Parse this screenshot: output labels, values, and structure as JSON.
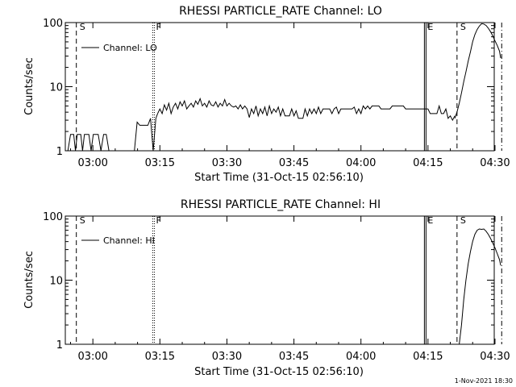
{
  "colors": {
    "background": "#ffffff",
    "ink": "#000000"
  },
  "footer": {
    "timestamp": "1-Nov-2021 18:30"
  },
  "chart_data": [
    {
      "type": "line",
      "title": "RHESSI PARTICLE_RATE Channel: LO",
      "xlabel": "Start Time (31-Oct-15 02:56:10)",
      "ylabel": "Counts/sec",
      "yscale": "log",
      "ylim": [
        1,
        100
      ],
      "xlim_minutes": [
        -6.17,
        89.83
      ],
      "xticks": [
        {
          "t": 0,
          "label": "03:00"
        },
        {
          "t": 15,
          "label": "03:15"
        },
        {
          "t": 30,
          "label": "03:30"
        },
        {
          "t": 45,
          "label": "03:45"
        },
        {
          "t": 60,
          "label": "04:00"
        },
        {
          "t": 75,
          "label": "04:15"
        },
        {
          "t": 90,
          "label": "04:30"
        }
      ],
      "yticks": [
        {
          "v": 1,
          "label": "1"
        },
        {
          "v": 10,
          "label": "10"
        },
        {
          "v": 100,
          "label": "100"
        }
      ],
      "legend": {
        "position": "top-left",
        "label": "Channel: LO"
      },
      "markers": [
        {
          "t": -3.7,
          "style": "dashed",
          "label": "S"
        },
        {
          "t": 13.4,
          "style": "dotted",
          "label": "F"
        },
        {
          "t": 74.2,
          "style": "solid",
          "label": "E"
        },
        {
          "t": 81.5,
          "style": "dashed",
          "label": "S"
        },
        {
          "t": 91.5,
          "style": "dashdot",
          "label": ""
        }
      ],
      "series": [
        {
          "name": "Channel: LO",
          "segments": [
            {
              "t": [
                -5.6,
                -5.0,
                -4.3,
                -3.9,
                -3.5,
                -3.1,
                -2.7,
                -2.3,
                -1.9,
                -1.4,
                -0.9,
                -0.4,
                0.1,
                0.6,
                1.2,
                1.8,
                2.4,
                3.0,
                3.6
              ],
              "v": [
                1,
                1.8,
                1.8,
                1,
                1.8,
                1.8,
                1.8,
                1,
                1.8,
                1.8,
                1.8,
                1,
                1.8,
                1.8,
                1.8,
                1,
                1.8,
                1.8,
                1
              ]
            },
            {
              "t": [
                9.3,
                9.9,
                10.5,
                11.1,
                11.7,
                12.3,
                12.9,
                13.5,
                14.1,
                14.5
              ],
              "v": [
                1,
                2.8,
                2.5,
                2.5,
                2.5,
                2.5,
                3.2,
                1,
                3.2,
                3.8
              ]
            },
            {
              "t": [
                14.5,
                15.0,
                15.5,
                16.0,
                16.5,
                17.0,
                17.5,
                18.0,
                18.5,
                19.0,
                19.5,
                20.0,
                20.5,
                21.0,
                21.5,
                22.0,
                22.5,
                23.0,
                23.5,
                24.0,
                24.5,
                25.0,
                25.5,
                26.0,
                26.5,
                27.0,
                27.5,
                28.0,
                28.5,
                29.0,
                29.5,
                30.0,
                30.5,
                31.0,
                31.5,
                32.0,
                32.5,
                33.0,
                33.5,
                34.0,
                34.5,
                35.0,
                35.5,
                36.0,
                36.5,
                37.0,
                37.5,
                38.0,
                38.5,
                39.0,
                39.5,
                40.0,
                40.5,
                41.0,
                41.5,
                42.0,
                42.5,
                43.0,
                43.5,
                44.0,
                44.5,
                45.0,
                45.5,
                46.0,
                46.5,
                47.0,
                47.5,
                48.0,
                48.5,
                49.0,
                49.5,
                50.0,
                50.5,
                51.0,
                51.5,
                52.0,
                52.5,
                53.0,
                53.5,
                54.0,
                54.5,
                55.0,
                55.5,
                56.0,
                56.5,
                57.0,
                57.5,
                58.0,
                58.5,
                59.0,
                59.5,
                60.0,
                60.5,
                61.0,
                61.5,
                62.0,
                62.5,
                63.0,
                63.5,
                64.0,
                64.5,
                65.0,
                65.5,
                66.0,
                66.5,
                67.0,
                67.5,
                68.0,
                68.5,
                69.0,
                69.5,
                70.0,
                70.5,
                71.0,
                71.5,
                72.0,
                72.5,
                73.0,
                73.5,
                74.0,
                74.5,
                75.0,
                75.5,
                76.0,
                76.5,
                77.0,
                77.5,
                78.0,
                78.5,
                79.0,
                79.5,
                80.0,
                80.5,
                81.0
              ],
              "v": [
                3.8,
                4.5,
                3.8,
                5.2,
                4.3,
                5.5,
                3.8,
                4.8,
                5.5,
                4.5,
                5.8,
                5.0,
                6.0,
                4.5,
                5.0,
                5.5,
                4.8,
                6.0,
                5.3,
                6.5,
                5.0,
                5.5,
                4.8,
                6.0,
                5.2,
                5.0,
                5.8,
                4.8,
                5.5,
                5.0,
                6.3,
                5.0,
                5.5,
                5.0,
                4.8,
                5.0,
                4.5,
                5.2,
                4.5,
                5.0,
                4.5,
                3.3,
                4.5,
                3.8,
                5.0,
                3.5,
                4.5,
                3.8,
                4.8,
                3.5,
                5.0,
                3.8,
                4.5,
                4.0,
                4.8,
                3.5,
                4.5,
                3.5,
                3.5,
                3.5,
                4.5,
                3.5,
                4.2,
                3.2,
                3.2,
                3.2,
                4.5,
                3.5,
                4.5,
                3.8,
                4.5,
                3.8,
                4.8,
                3.8,
                4.5,
                4.5,
                4.5,
                4.5,
                3.8,
                4.5,
                4.8,
                3.8,
                4.5,
                4.5,
                4.5,
                4.5,
                4.5,
                4.5,
                4.8,
                3.8,
                4.5,
                3.8,
                5.0,
                4.5,
                5.0,
                4.5,
                5.0,
                5.0,
                5.0,
                5.0,
                4.5,
                4.5,
                4.5,
                4.5,
                4.5,
                5.0,
                5.0,
                5.0,
                5.0,
                5.0,
                5.0,
                4.5,
                4.5,
                4.5,
                4.5,
                4.5,
                4.5,
                4.5,
                4.5,
                4.5,
                4.5,
                4.5,
                3.8,
                3.8,
                3.8,
                3.8,
                5.0,
                3.8,
                3.8,
                4.5,
                3.2,
                3.5,
                3.0,
                3.5,
                3.2
              ]
            },
            {
              "t": [
                81.0,
                81.5,
                82.0,
                82.5,
                83.0,
                83.5,
                84.0,
                84.5,
                85.0,
                85.5,
                86.0,
                86.5,
                87.0,
                87.5,
                88.0,
                88.5,
                89.0,
                89.5,
                90.0,
                90.5,
                91.0,
                91.5
              ],
              "v": [
                3.2,
                4.0,
                5.5,
                8,
                12,
                17,
                25,
                35,
                50,
                65,
                78,
                88,
                96,
                95,
                90,
                82,
                72,
                62,
                52,
                44,
                36,
                28
              ]
            }
          ]
        }
      ]
    },
    {
      "type": "line",
      "title": "RHESSI PARTICLE_RATE Channel: HI",
      "xlabel": "Start Time (31-Oct-15 02:56:10)",
      "ylabel": "Counts/sec",
      "yscale": "log",
      "ylim": [
        1,
        100
      ],
      "xlim_minutes": [
        -6.17,
        89.83
      ],
      "xticks": [
        {
          "t": 0,
          "label": "03:00"
        },
        {
          "t": 15,
          "label": "03:15"
        },
        {
          "t": 30,
          "label": "03:30"
        },
        {
          "t": 45,
          "label": "03:45"
        },
        {
          "t": 60,
          "label": "04:00"
        },
        {
          "t": 75,
          "label": "04:15"
        },
        {
          "t": 90,
          "label": "04:30"
        }
      ],
      "yticks": [
        {
          "v": 1,
          "label": "1"
        },
        {
          "v": 10,
          "label": "10"
        },
        {
          "v": 100,
          "label": "100"
        }
      ],
      "legend": {
        "position": "top-left",
        "label": "Channel: HI"
      },
      "markers": [
        {
          "t": -3.7,
          "style": "dashed",
          "label": "S"
        },
        {
          "t": 13.4,
          "style": "dotted",
          "label": "F"
        },
        {
          "t": 74.2,
          "style": "solid",
          "label": "E"
        },
        {
          "t": 81.5,
          "style": "dashed",
          "label": "S"
        },
        {
          "t": 91.5,
          "style": "dashdot",
          "label": ""
        }
      ],
      "series": [
        {
          "name": "Channel: HI",
          "segments": [
            {
              "t": [
                82.0,
                82.5,
                83.0,
                83.5,
                84.0,
                84.5,
                85.0,
                85.5,
                86.0,
                86.5,
                87.0,
                87.5,
                88.0,
                88.5,
                89.0,
                89.5,
                90.0,
                90.5,
                91.0,
                91.5
              ],
              "v": [
                1,
                2,
                5,
                10,
                18,
                28,
                40,
                52,
                60,
                63,
                62,
                63,
                58,
                52,
                45,
                38,
                32,
                26,
                21,
                17
              ]
            }
          ]
        }
      ]
    }
  ]
}
